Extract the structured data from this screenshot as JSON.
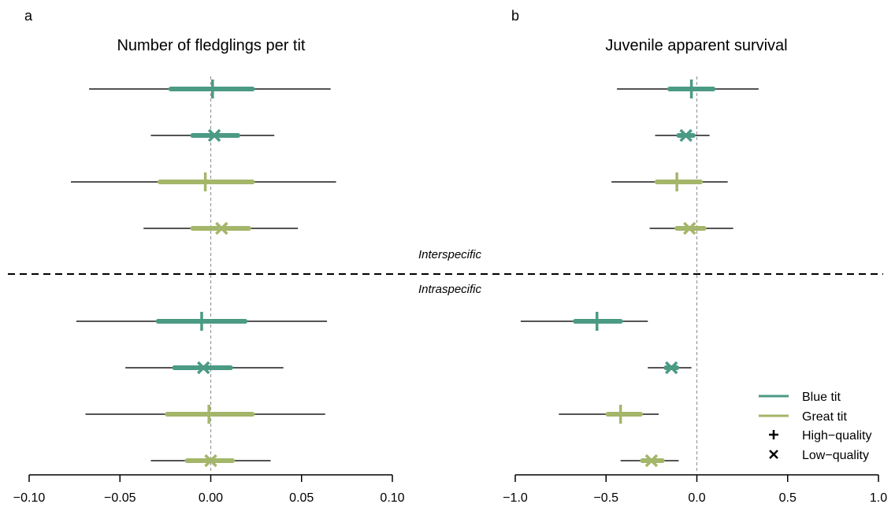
{
  "colors": {
    "blue_tit": "#4b9a84",
    "great_tit": "#a3b66a",
    "whisker": "#1a1a1a",
    "zero_line": "#999999"
  },
  "panels": [
    {
      "letter": "a",
      "title": "Number of fledglings per tit"
    },
    {
      "letter": "b",
      "title": "Juvenile apparent survival"
    }
  ],
  "group_labels": {
    "top": "Interspecific",
    "bottom": "Intraspecific"
  },
  "legend": {
    "blue_tit": "Blue tit",
    "great_tit": "Great tit",
    "high_quality": "High−quality",
    "low_quality": "Low−quality"
  },
  "chart_data": [
    {
      "type": "forest",
      "title": "Number of fledglings per tit",
      "xlim": [
        -0.1,
        0.1
      ],
      "xticks": [
        -0.1,
        -0.05,
        0.0,
        0.05,
        0.1
      ],
      "xtick_labels": [
        "−0.10",
        "−0.05",
        "0.00",
        "0.05",
        "0.10"
      ],
      "rows": [
        {
          "group": "Interspecific",
          "species": "Blue tit",
          "quality": "High-quality",
          "estimate": 0.001,
          "ci50": [
            -0.022,
            0.023
          ],
          "ci95": [
            -0.067,
            0.066
          ]
        },
        {
          "group": "Interspecific",
          "species": "Blue tit",
          "quality": "Low-quality",
          "estimate": 0.002,
          "ci50": [
            -0.01,
            0.015
          ],
          "ci95": [
            -0.033,
            0.035
          ]
        },
        {
          "group": "Interspecific",
          "species": "Great tit",
          "quality": "High-quality",
          "estimate": -0.003,
          "ci50": [
            -0.028,
            0.023
          ],
          "ci95": [
            -0.077,
            0.069
          ]
        },
        {
          "group": "Interspecific",
          "species": "Great tit",
          "quality": "Low-quality",
          "estimate": 0.006,
          "ci50": [
            -0.01,
            0.021
          ],
          "ci95": [
            -0.037,
            0.048
          ]
        },
        {
          "group": "Intraspecific",
          "species": "Blue tit",
          "quality": "High-quality",
          "estimate": -0.005,
          "ci50": [
            -0.029,
            0.019
          ],
          "ci95": [
            -0.074,
            0.064
          ]
        },
        {
          "group": "Intraspecific",
          "species": "Blue tit",
          "quality": "Low-quality",
          "estimate": -0.004,
          "ci50": [
            -0.02,
            0.011
          ],
          "ci95": [
            -0.047,
            0.04
          ]
        },
        {
          "group": "Intraspecific",
          "species": "Great tit",
          "quality": "High-quality",
          "estimate": -0.001,
          "ci50": [
            -0.024,
            0.023
          ],
          "ci95": [
            -0.069,
            0.063
          ]
        },
        {
          "group": "Intraspecific",
          "species": "Great tit",
          "quality": "Low-quality",
          "estimate": 0.0,
          "ci50": [
            -0.013,
            0.012
          ],
          "ci95": [
            -0.033,
            0.033
          ]
        }
      ]
    },
    {
      "type": "forest",
      "title": "Juvenile apparent survival",
      "xlim": [
        -1.0,
        1.0
      ],
      "xticks": [
        -1.0,
        -0.5,
        0.0,
        0.5,
        1.0
      ],
      "xtick_labels": [
        "−1.0",
        "−0.5",
        "0.0",
        "0.5",
        "1.0"
      ],
      "rows": [
        {
          "group": "Interspecific",
          "species": "Blue tit",
          "quality": "High-quality",
          "estimate": -0.03,
          "ci50": [
            -0.15,
            0.09
          ],
          "ci95": [
            -0.44,
            0.34
          ]
        },
        {
          "group": "Interspecific",
          "species": "Blue tit",
          "quality": "Low-quality",
          "estimate": -0.06,
          "ci50": [
            -0.1,
            -0.02
          ],
          "ci95": [
            -0.23,
            0.07
          ]
        },
        {
          "group": "Interspecific",
          "species": "Great tit",
          "quality": "High-quality",
          "estimate": -0.11,
          "ci50": [
            -0.22,
            0.02
          ],
          "ci95": [
            -0.47,
            0.17
          ]
        },
        {
          "group": "Interspecific",
          "species": "Great tit",
          "quality": "Low-quality",
          "estimate": -0.04,
          "ci50": [
            -0.11,
            0.04
          ],
          "ci95": [
            -0.26,
            0.2
          ]
        },
        {
          "group": "Intraspecific",
          "species": "Blue tit",
          "quality": "High-quality",
          "estimate": -0.55,
          "ci50": [
            -0.67,
            -0.42
          ],
          "ci95": [
            -0.97,
            -0.27
          ]
        },
        {
          "group": "Intraspecific",
          "species": "Blue tit",
          "quality": "Low-quality",
          "estimate": -0.14,
          "ci50": [
            -0.17,
            -0.11
          ],
          "ci95": [
            -0.27,
            -0.03
          ]
        },
        {
          "group": "Intraspecific",
          "species": "Great tit",
          "quality": "High-quality",
          "estimate": -0.42,
          "ci50": [
            -0.49,
            -0.31
          ],
          "ci95": [
            -0.76,
            -0.21
          ]
        },
        {
          "group": "Intraspecific",
          "species": "Great tit",
          "quality": "Low-quality",
          "estimate": -0.25,
          "ci50": [
            -0.3,
            -0.19
          ],
          "ci95": [
            -0.42,
            -0.1
          ]
        }
      ]
    }
  ]
}
